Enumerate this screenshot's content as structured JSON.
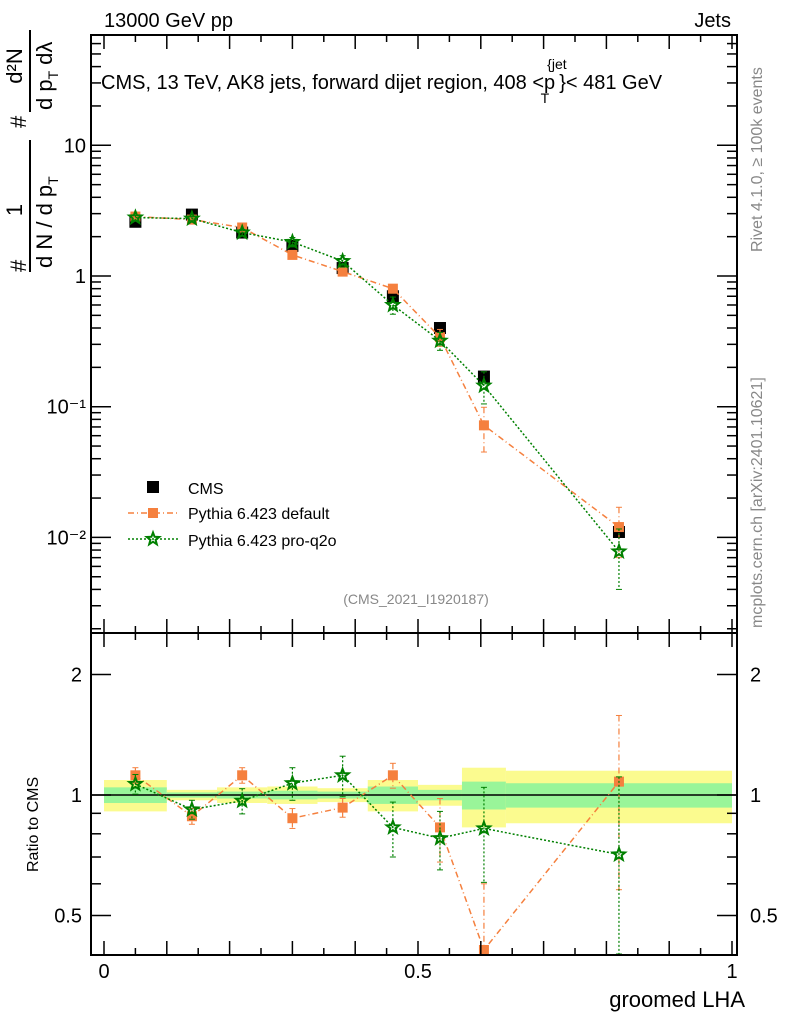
{
  "header": {
    "left": "13000 GeV pp",
    "right": "Jets"
  },
  "title": {
    "pre": "CMS, 13 TeV, AK8 jets, forward dijet region, 408 <p",
    "sup": "{jet",
    "sub": "T",
    "post": "}< 481 GeV"
  },
  "side_text": {
    "rivet": "Rivet 4.1.0, ≥ 100k events",
    "mcplots": "mcplots.cern.ch [arXiv:2401.10621]"
  },
  "analysis_id": "(CMS_2021_I1920187)",
  "ylabel_parts": {
    "hash1": "#",
    "one": "1",
    "denom1": "d N / d p",
    "sub1": "T",
    "hash2": "#",
    "num2": "d²N",
    "denom2": "d p",
    "sub2": "T",
    "dl": "dλ"
  },
  "colors": {
    "cms": "#000000",
    "default": "#f5803e",
    "proq2o": "#008000",
    "band_total": "#fbfb8f",
    "band_stat": "#99f599"
  },
  "chart_data": [
    {
      "type": "scatter",
      "title": "CMS, 13 TeV, AK8 jets, forward dijet region, 408 < pT(jet) < 481 GeV",
      "xlabel": "groomed LHA",
      "ylabel": "1/(dN/dpT) d²N/(dpT dλ)",
      "yscale": "log",
      "xlim": [
        -0.02,
        1.01
      ],
      "ylim": [
        0.00185,
        69
      ],
      "ytick_labels": [
        {
          "v": 10,
          "label": "10"
        },
        {
          "v": 1,
          "label": "1"
        },
        {
          "v": 0.1,
          "label": "10⁻¹"
        },
        {
          "v": 0.01,
          "label": "10⁻²"
        }
      ],
      "legend_position": "bottom-left",
      "x": [
        0.05,
        0.14,
        0.22,
        0.3,
        0.38,
        0.46,
        0.535,
        0.605,
        0.82
      ],
      "bin_edges": [
        0,
        0.1,
        0.18,
        0.26,
        0.34,
        0.42,
        0.5,
        0.57,
        0.64,
        1.0
      ],
      "series": [
        {
          "name": "CMS",
          "key": "cms",
          "values": [
            2.6,
            2.95,
            2.15,
            1.7,
            1.15,
            0.7,
            0.4,
            0.17,
            0.011
          ]
        },
        {
          "name": "Pythia 6.423 default",
          "key": "default",
          "values": [
            2.85,
            2.7,
            2.35,
            1.45,
            1.08,
            0.8,
            0.34,
            0.072,
            0.012
          ],
          "yerr": [
            0.1,
            0.08,
            0.1,
            0.07,
            0.06,
            0.06,
            0.05,
            0.027,
            0.005
          ]
        },
        {
          "name": "Pythia 6.423 pro-q2o",
          "key": "proq2o",
          "values": [
            2.8,
            2.75,
            2.15,
            1.82,
            1.3,
            0.6,
            0.32,
            0.145,
            0.0078
          ],
          "yerr": [
            0.12,
            0.1,
            0.12,
            0.15,
            0.13,
            0.09,
            0.05,
            0.04,
            0.0038
          ]
        }
      ]
    },
    {
      "type": "scatter",
      "ylabel": "Ratio to CMS",
      "xlabel": "groomed LHA",
      "yscale": "log",
      "ylim": [
        0.4,
        2.55
      ],
      "xtick_labels": [
        {
          "v": 0,
          "label": "0"
        },
        {
          "v": 0.5,
          "label": "0.5"
        },
        {
          "v": 1,
          "label": "1"
        }
      ],
      "ytick_labels": [
        {
          "v": 0.5,
          "label": "0.5"
        },
        {
          "v": 1,
          "label": "1"
        },
        {
          "v": 2,
          "label": "2"
        }
      ],
      "band_total_halfwidth": [
        0.09,
        0.03,
        0.045,
        0.05,
        0.04,
        0.09,
        0.06,
        0.17,
        0.15
      ],
      "band_stat_halfwidth": [
        0.045,
        0.015,
        0.02,
        0.025,
        0.02,
        0.05,
        0.03,
        0.08,
        0.07
      ],
      "series": [
        {
          "name": "Pythia 6.423 default",
          "key": "default",
          "values": [
            1.12,
            0.885,
            1.12,
            0.875,
            0.93,
            1.12,
            0.83,
            0.41,
            1.08
          ],
          "yerr": [
            0.05,
            0.04,
            0.05,
            0.05,
            0.05,
            0.08,
            0.15,
            0.19,
            0.5
          ]
        },
        {
          "name": "Pythia 6.423 pro-q2o",
          "key": "proq2o",
          "values": [
            1.065,
            0.92,
            0.967,
            1.07,
            1.12,
            0.83,
            0.78,
            0.825,
            0.71
          ],
          "yerr": [
            0.06,
            0.05,
            0.07,
            0.1,
            0.13,
            0.13,
            0.13,
            0.22,
            0.4
          ]
        }
      ]
    }
  ]
}
